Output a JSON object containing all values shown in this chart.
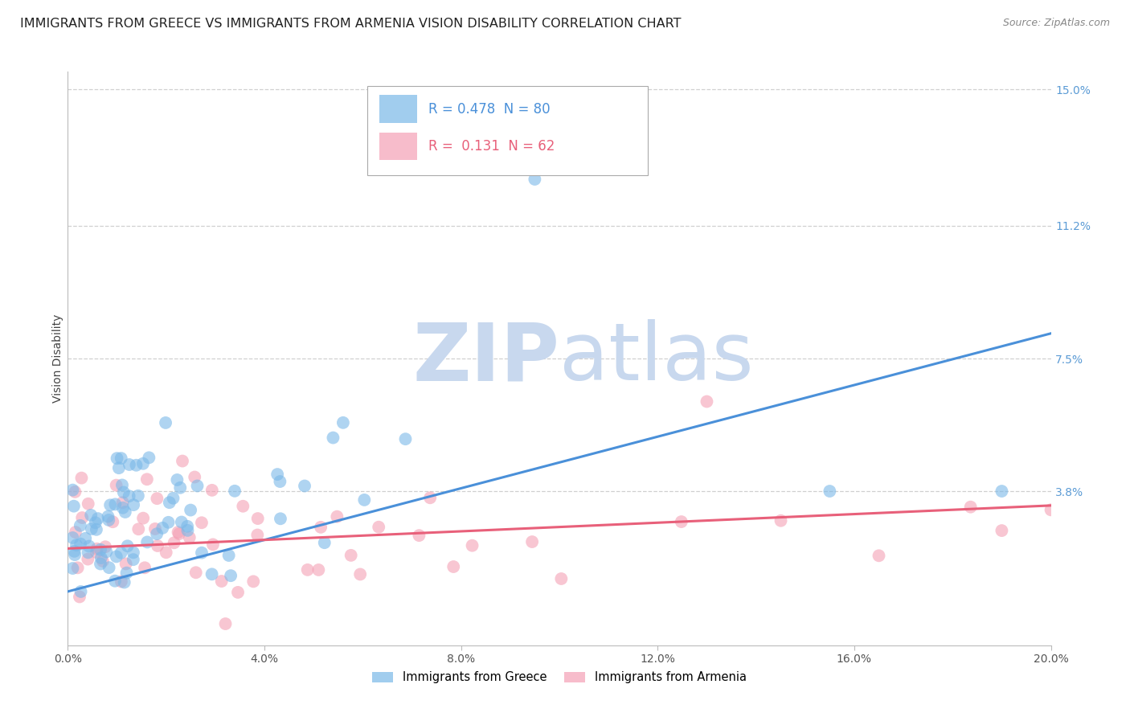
{
  "title": "IMMIGRANTS FROM GREECE VS IMMIGRANTS FROM ARMENIA VISION DISABILITY CORRELATION CHART",
  "source": "Source: ZipAtlas.com",
  "ylabel": "Vision Disability",
  "xlim": [
    0.0,
    0.2
  ],
  "ylim": [
    -0.005,
    0.155
  ],
  "xticks": [
    0.0,
    0.04,
    0.08,
    0.12,
    0.16,
    0.2
  ],
  "xticklabels": [
    "0.0%",
    "4.0%",
    "8.0%",
    "12.0%",
    "16.0%",
    "20.0%"
  ],
  "right_ytick_values": [
    0.038,
    0.075,
    0.112,
    0.15
  ],
  "right_ytick_labels": [
    "3.8%",
    "7.5%",
    "11.2%",
    "15.0%"
  ],
  "greece_R": 0.478,
  "greece_N": 80,
  "armenia_R": 0.131,
  "armenia_N": 62,
  "greece_color": "#7ab8e8",
  "armenia_color": "#f4a0b5",
  "greece_line_color": "#4a90d9",
  "armenia_line_color": "#e8607a",
  "watermark_zip_color": "#c8d8ee",
  "watermark_atlas_color": "#c8d8ee",
  "background_color": "#ffffff",
  "grid_color": "#d0d0d0",
  "title_fontsize": 11.5,
  "axis_label_fontsize": 10,
  "tick_fontsize": 10,
  "legend_fontsize": 12,
  "right_tick_color": "#5b9bd5",
  "greece_line_start_y": 0.01,
  "greece_line_end_y": 0.082,
  "armenia_line_start_y": 0.022,
  "armenia_line_end_y": 0.034
}
